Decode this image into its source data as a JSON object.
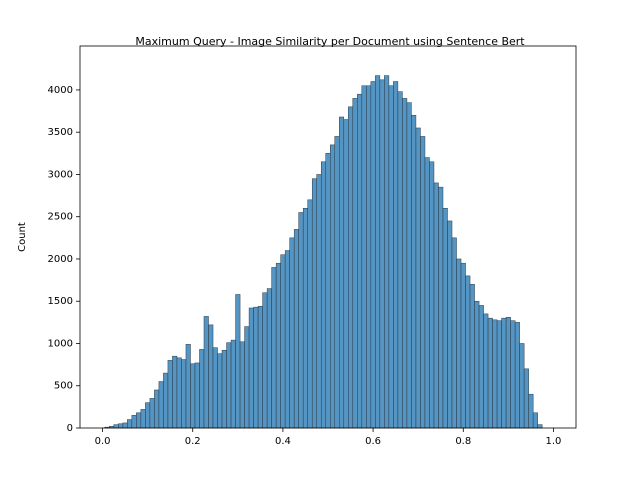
{
  "chart_data": {
    "type": "histogram",
    "title": "Maximum Query - Image Similarity per Document using Sentence Bert",
    "y_label": "Count",
    "color": "#4c8fc0",
    "edgecolor": "#2b3a47",
    "bins": [
      0.005,
      0.015,
      0.025,
      0.035,
      0.045,
      0.055,
      0.065,
      0.075,
      0.085,
      0.095,
      0.105,
      0.115,
      0.125,
      0.135,
      0.145,
      0.155,
      0.165,
      0.175,
      0.185,
      0.195,
      0.205,
      0.215,
      0.225,
      0.235,
      0.245,
      0.255,
      0.265,
      0.275,
      0.285,
      0.295,
      0.305,
      0.315,
      0.325,
      0.335,
      0.345,
      0.355,
      0.365,
      0.375,
      0.385,
      0.395,
      0.405,
      0.415,
      0.425,
      0.435,
      0.445,
      0.455,
      0.465,
      0.475,
      0.485,
      0.495,
      0.505,
      0.515,
      0.525,
      0.535,
      0.545,
      0.555,
      0.565,
      0.575,
      0.585,
      0.595,
      0.605,
      0.615,
      0.625,
      0.635,
      0.645,
      0.655,
      0.665,
      0.675,
      0.685,
      0.695,
      0.705,
      0.715,
      0.725,
      0.735,
      0.745,
      0.755,
      0.765,
      0.775,
      0.785,
      0.795,
      0.805,
      0.815,
      0.825,
      0.835,
      0.845,
      0.855,
      0.865,
      0.875,
      0.885,
      0.895,
      0.905,
      0.915,
      0.925,
      0.935,
      0.945,
      0.955,
      0.965,
      0.975
    ],
    "counts": [
      10,
      20,
      40,
      50,
      60,
      100,
      150,
      180,
      220,
      300,
      350,
      450,
      550,
      650,
      800,
      850,
      830,
      810,
      990,
      760,
      770,
      930,
      1320,
      1220,
      950,
      880,
      920,
      1010,
      1040,
      1580,
      1020,
      1200,
      1420,
      1430,
      1440,
      1600,
      1650,
      1900,
      1950,
      2050,
      2100,
      2250,
      2350,
      2550,
      2600,
      2700,
      2950,
      3000,
      3150,
      3250,
      3350,
      3450,
      3680,
      3650,
      3800,
      3900,
      3950,
      4050,
      4050,
      4100,
      4170,
      4120,
      4170,
      4050,
      4100,
      3980,
      3900,
      3850,
      3700,
      3550,
      3450,
      3200,
      3150,
      2900,
      2850,
      2600,
      2450,
      2250,
      2000,
      1950,
      1800,
      1700,
      1500,
      1450,
      1350,
      1300,
      1280,
      1270,
      1300,
      1310,
      1270,
      1250,
      1000,
      700,
      400,
      180,
      40
    ],
    "xlim": [
      -0.05,
      1.05
    ],
    "xticks": [
      {
        "value": 0,
        "label": "0.0"
      },
      0.2,
      0.4,
      0.6,
      0.8,
      {
        "value": 1,
        "label": "1.0"
      }
    ],
    "ylim": [
      0,
      4520
    ],
    "yticks": [
      0,
      500,
      1000,
      1500,
      2000,
      2500,
      3000,
      3500,
      4000
    ],
    "grid": false
  }
}
